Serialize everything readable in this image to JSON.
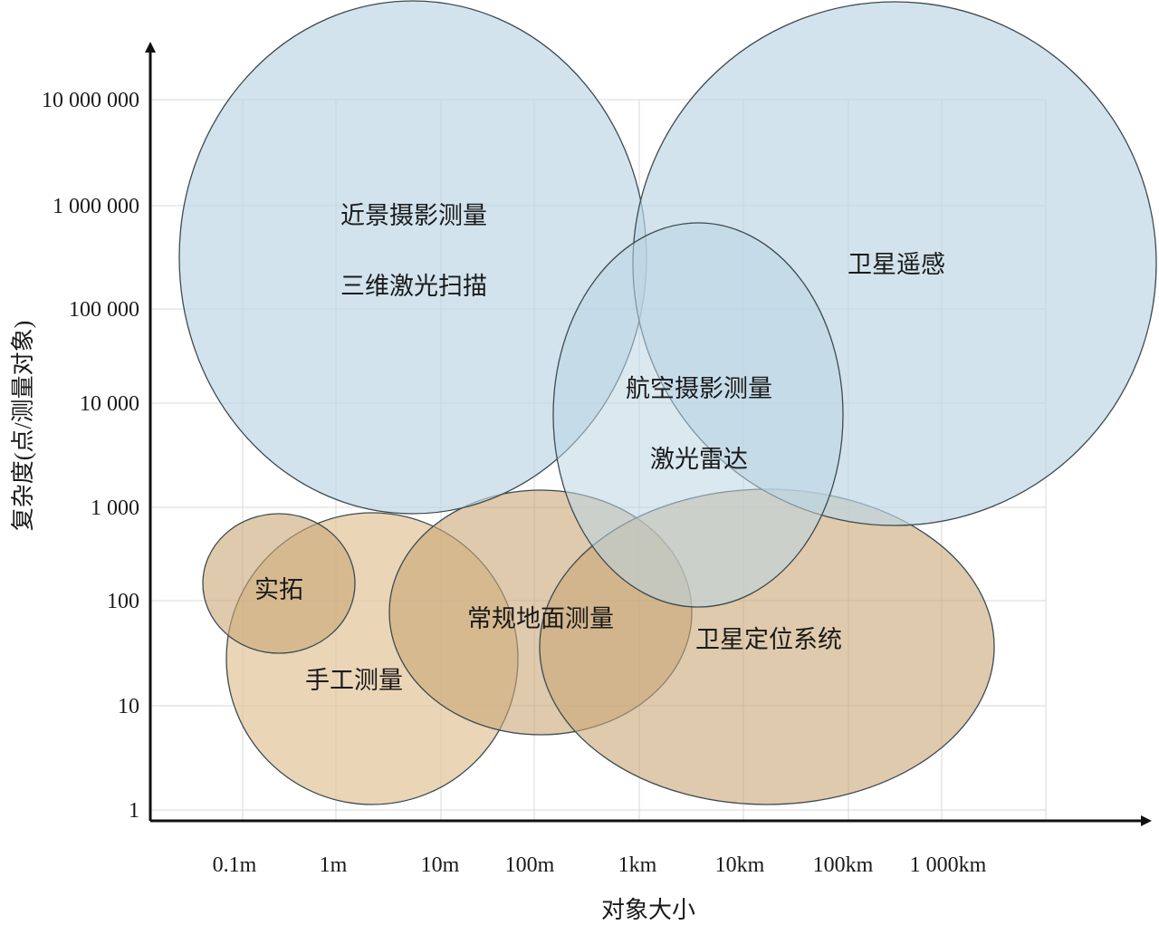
{
  "diagram": {
    "x_axis": {
      "title": "对象大小",
      "ticks": [
        "0.1m",
        "1m",
        "10m",
        "100m",
        "1km",
        "10km",
        "100km",
        "1 000km"
      ]
    },
    "y_axis": {
      "title": "复杂度(点/测量对象)",
      "ticks": [
        "1",
        "10",
        "100",
        "1 000",
        "10 000",
        "100 000",
        "1 000 000",
        "10 000 000"
      ]
    },
    "colors": {
      "blue_fill": "#bcd6e4",
      "tan_fill": "#c9a677",
      "light_tan_fill": "#e2c59b",
      "outline": "#3d4b4f"
    },
    "regions": [
      {
        "id": "close-range",
        "labels": [
          "近景摄影测量",
          "三维激光扫描"
        ],
        "group": "blue"
      },
      {
        "id": "satellite-rs",
        "labels": [
          "卫星遥感"
        ],
        "group": "blue"
      },
      {
        "id": "aerial",
        "labels": [
          "航空摄影测量",
          "激光雷达"
        ],
        "group": "blue"
      },
      {
        "id": "rubbing",
        "labels": [
          "实拓"
        ],
        "group": "tan"
      },
      {
        "id": "manual",
        "labels": [
          "手工测量"
        ],
        "group": "light-tan"
      },
      {
        "id": "conventional",
        "labels": [
          "常规地面测量"
        ],
        "group": "tan"
      },
      {
        "id": "gnss",
        "labels": [
          "卫星定位系统"
        ],
        "group": "tan"
      }
    ]
  }
}
